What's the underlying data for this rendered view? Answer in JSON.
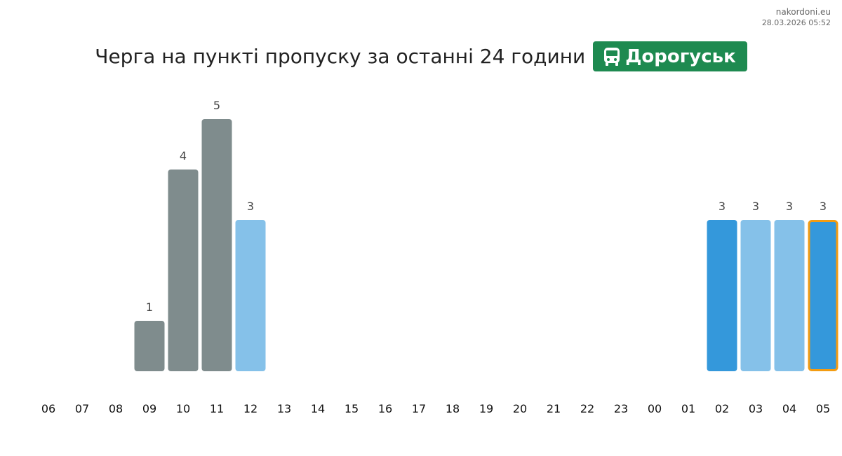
{
  "source": "nakordoni.eu",
  "timestamp": "28.03.2026 05:52",
  "chart_data": {
    "type": "bar",
    "title": "Черга на пункті пропуску за останні 24 години",
    "badge": "Дорогуськ",
    "categories": [
      "06",
      "07",
      "08",
      "09",
      "10",
      "11",
      "12",
      "13",
      "14",
      "15",
      "16",
      "17",
      "18",
      "19",
      "20",
      "21",
      "22",
      "23",
      "00",
      "01",
      "02",
      "03",
      "04",
      "05"
    ],
    "values": [
      null,
      null,
      null,
      1,
      4,
      5,
      3,
      null,
      null,
      null,
      null,
      null,
      null,
      null,
      null,
      null,
      null,
      null,
      null,
      null,
      3,
      3,
      3,
      3
    ],
    "colors": [
      null,
      null,
      null,
      "#7f8c8d",
      "#7f8c8d",
      "#7f8c8d",
      "#85c1e9",
      null,
      null,
      null,
      null,
      null,
      null,
      null,
      null,
      null,
      null,
      null,
      null,
      null,
      "#3498db",
      "#85c1e9",
      "#85c1e9",
      "#3498db"
    ],
    "border_colors": [
      null,
      null,
      null,
      null,
      null,
      null,
      null,
      null,
      null,
      null,
      null,
      null,
      null,
      null,
      null,
      null,
      null,
      null,
      null,
      null,
      null,
      null,
      null,
      "#f39c12"
    ],
    "ylim": [
      0,
      5
    ]
  }
}
